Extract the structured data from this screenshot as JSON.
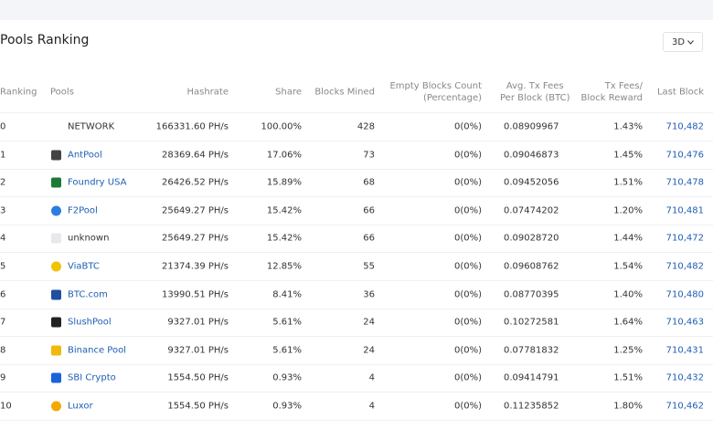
{
  "header": {
    "title": "Pools Ranking",
    "period": "3D"
  },
  "table": {
    "columns": [
      "Ranking",
      "Pools",
      "Hashrate",
      "Share",
      "Blocks Mined",
      "Empty Blocks Count\n(Percentage)",
      "Avg. Tx Fees\nPer Block (BTC)",
      "Tx Fees/\nBlock Reward",
      "Last Block"
    ],
    "rows": [
      [
        "0",
        "NETWORK",
        "166331.60 PH/s",
        "100.00%",
        "428",
        "0(0%)",
        "0.08909967",
        "1.43%",
        "710,482"
      ],
      [
        "1",
        "AntPool",
        "28369.64 PH/s",
        "17.06%",
        "73",
        "0(0%)",
        "0.09046873",
        "1.45%",
        "710,476"
      ],
      [
        "2",
        "Foundry USA",
        "26426.52 PH/s",
        "15.89%",
        "68",
        "0(0%)",
        "0.09452056",
        "1.51%",
        "710,478"
      ],
      [
        "3",
        "F2Pool",
        "25649.27 PH/s",
        "15.42%",
        "66",
        "0(0%)",
        "0.07474202",
        "1.20%",
        "710,481"
      ],
      [
        "4",
        "unknown",
        "25649.27 PH/s",
        "15.42%",
        "66",
        "0(0%)",
        "0.09028720",
        "1.44%",
        "710,472"
      ],
      [
        "5",
        "ViaBTC",
        "21374.39 PH/s",
        "12.85%",
        "55",
        "0(0%)",
        "0.09608762",
        "1.54%",
        "710,482"
      ],
      [
        "6",
        "BTC.com",
        "13990.51 PH/s",
        "8.41%",
        "36",
        "0(0%)",
        "0.08770395",
        "1.40%",
        "710,480"
      ],
      [
        "7",
        "SlushPool",
        "9327.01 PH/s",
        "5.61%",
        "24",
        "0(0%)",
        "0.10272581",
        "1.64%",
        "710,463"
      ],
      [
        "8",
        "Binance Pool",
        "9327.01 PH/s",
        "5.61%",
        "24",
        "0(0%)",
        "0.07781832",
        "1.25%",
        "710,431"
      ],
      [
        "9",
        "SBI Crypto",
        "1554.50 PH/s",
        "0.93%",
        "4",
        "0(0%)",
        "0.09414791",
        "1.51%",
        "710,432"
      ],
      [
        "10",
        "Luxor",
        "1554.50 PH/s",
        "0.93%",
        "4",
        "0(0%)",
        "0.11235852",
        "1.80%",
        "710,462"
      ]
    ]
  }
}
